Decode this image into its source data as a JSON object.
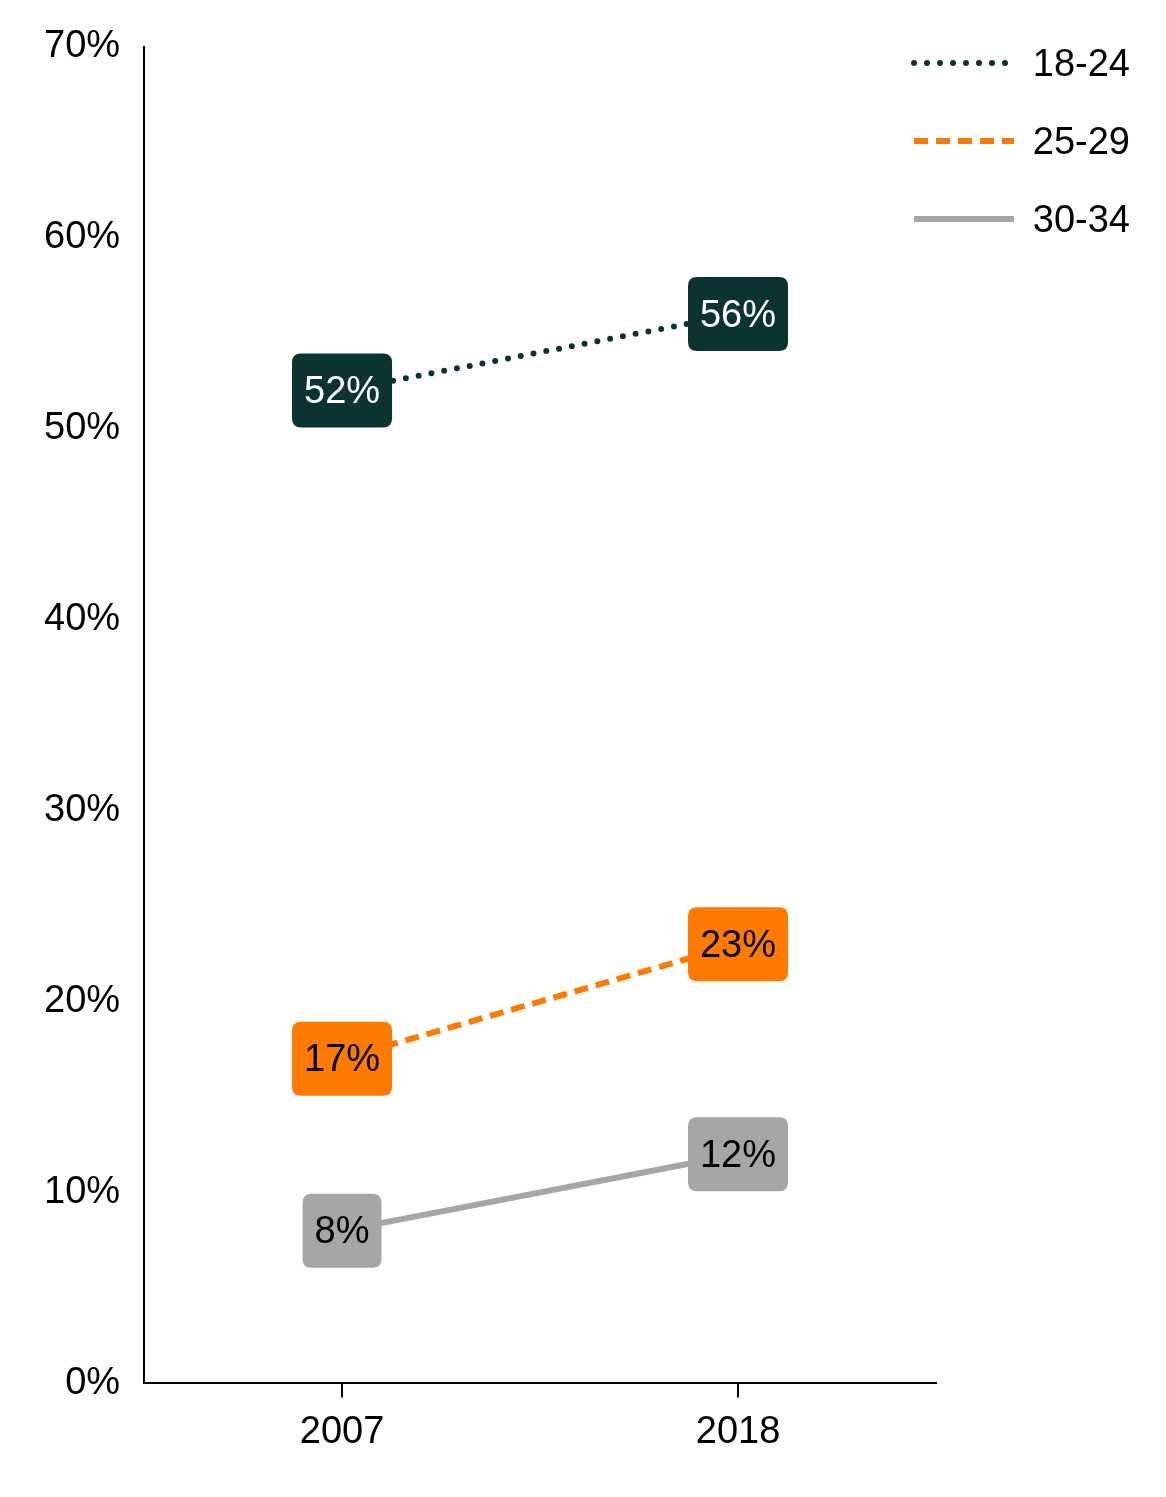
{
  "chart_data": {
    "type": "line",
    "categories": [
      "2007",
      "2018"
    ],
    "series": [
      {
        "name": "18-24",
        "color": "#0b3431",
        "line_style": "dotted",
        "values": [
          52,
          56
        ],
        "value_labels": [
          "52%",
          "56%"
        ]
      },
      {
        "name": "25-29",
        "color": "#ff7b00",
        "line_style": "dashed",
        "values": [
          17,
          23
        ],
        "value_labels": [
          "17%",
          "23%"
        ]
      },
      {
        "name": "30-34",
        "color": "#a6a6a6",
        "line_style": "solid",
        "values": [
          8,
          12
        ],
        "value_labels": [
          "8%",
          "12%"
        ]
      }
    ],
    "ylim": [
      0,
      70
    ],
    "yticks": [
      {
        "value": 0,
        "label": "0%"
      },
      {
        "value": 10,
        "label": "10%"
      },
      {
        "value": 20,
        "label": "20%"
      },
      {
        "value": 30,
        "label": "30%"
      },
      {
        "value": 40,
        "label": "40%"
      },
      {
        "value": 50,
        "label": "50%"
      },
      {
        "value": 60,
        "label": "60%"
      },
      {
        "value": 70,
        "label": "70%"
      }
    ],
    "grid": false,
    "legend": "upper right",
    "data_labels": true
  }
}
